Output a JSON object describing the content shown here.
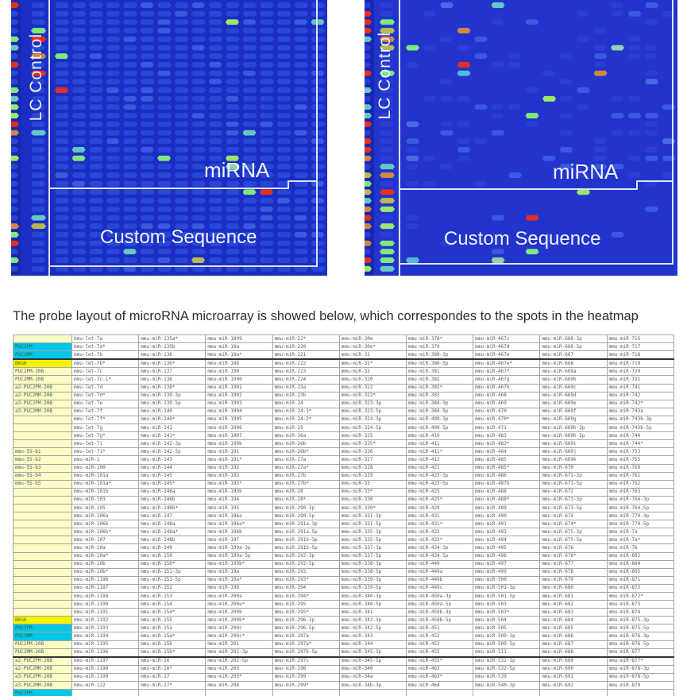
{
  "figure": {
    "lc_control_label": "LC Control",
    "mirna_label": "miRNA",
    "custom_sequence_label": "Custom Sequence",
    "left_panel_bg": "#1b2ec3",
    "right_panel_bg": "#2334cd",
    "dim_spot_color": "#2947d6",
    "dull_spot_color": "#2a3ed6",
    "light_spot_color": "#3a5ae0",
    "accent_colors": [
      "#7de87d",
      "#66c8c2",
      "#55b8d8",
      "#cc8844",
      "#b8b855",
      "#e33022",
      "#9ae86a",
      "#4a6ae4",
      "#8fd0b0"
    ],
    "strip_accent_colors": [
      "#e33022",
      "#cc8844",
      "#7de87d",
      "#66c8c2",
      "#b8b855",
      "#9ae86a"
    ],
    "line_color": "#d9e4f4"
  },
  "caption": {
    "text": "The probe layout of microRNA microarray is showed below, which correspondes to the spots in the heatmap above."
  },
  "table": {
    "cyan_labels": [
      "PUC2PM",
      "PUC2MM"
    ],
    "yellow_labels": [
      "BKG6"
    ],
    "thick_after_rows": [
      3,
      40
    ],
    "rows": [
      [
        "",
        "mmu-let-7a",
        "mmu-miR-135a*",
        "mmu-miR-1899",
        "mmu-miR-22*",
        "mmu-miR-30e",
        "mmu-miR-378*",
        "mmu-miR-467c",
        "mmu-miR-666-3p",
        "mmu-miR-715"
      ],
      [
        "PUC2PM",
        "mmu-let-7a*",
        "mmu-miR-135b",
        "mmu-miR-18a",
        "mmu-miR-220",
        "mmu-miR-30e*",
        "mmu-miR-379",
        "mmu-miR-467d",
        "mmu-miR-666-5p",
        "mmu-miR-717"
      ],
      [
        "PUC2MM",
        "mmu-let-7b",
        "mmu-miR-136",
        "mmu-miR-18a*",
        "mmu-miR-221",
        "mmu-miR-31",
        "mmu-miR-380-3p",
        "mmu-miR-467e",
        "mmu-miR-667",
        "mmu-miR-718"
      ],
      [
        "BKG6",
        "mmu-let-7b*",
        "mmu-miR-136*",
        "mmu-miR-18b",
        "mmu-miR-222",
        "mmu-miR-31*",
        "mmu-miR-380-5p",
        "mmu-miR-467e*",
        "mmu-miR-668",
        "mmu-miR-719"
      ],
      [
        "PUC2PM-20B",
        "mmu-let-7c",
        "mmu-miR-137",
        "mmu-miR-190",
        "mmu-miR-223",
        "mmu-miR-32",
        "mmu-miR-381",
        "mmu-miR-467f",
        "mmu-miR-669a",
        "mmu-miR-720"
      ],
      [
        "PUC2MM-20B",
        "mmu-let-7c-1*",
        "mmu-miR-138",
        "mmu-miR-1900",
        "mmu-miR-224",
        "mmu-miR-320",
        "mmu-miR-382",
        "mmu-miR-467g",
        "mmu-miR-669b",
        "mmu-miR-721"
      ],
      [
        "a2-PUC2PM-20B",
        "mmu-let-7d",
        "mmu-miR-138*",
        "mmu-miR-1901",
        "mmu-miR-23a",
        "mmu-miR-322",
        "mmu-miR-382*",
        "mmu-miR-467h",
        "mmu-miR-669c",
        "mmu-miR-741"
      ],
      [
        "a2-PUC2MM-20B",
        "mmu-let-7d*",
        "mmu-miR-139-3p",
        "mmu-miR-1902",
        "mmu-miR-23b",
        "mmu-miR-322*",
        "mmu-miR-383",
        "mmu-miR-468",
        "mmu-miR-669d",
        "mmu-miR-742"
      ],
      [
        "a3-PUC2PM-20B",
        "mmu-let-7e",
        "mmu-miR-139-5p",
        "mmu-miR-1903",
        "mmu-miR-24",
        "mmu-miR-323-3p",
        "mmu-miR-384-3p",
        "mmu-miR-469",
        "mmu-miR-669e",
        "mmu-miR-742*"
      ],
      [
        "a3-PUC2MM-20B",
        "mmu-let-7f",
        "mmu-miR-140",
        "mmu-miR-1904",
        "mmu-miR-24-1*",
        "mmu-miR-323-5p",
        "mmu-miR-384-5p",
        "mmu-miR-470",
        "mmu-miR-669f",
        "mmu-miR-743a"
      ],
      [
        "",
        "mmu-let-7f*",
        "mmu-miR-140*",
        "mmu-miR-1905",
        "mmu-miR-24-2*",
        "mmu-miR-324-3p",
        "mmu-miR-409-3p",
        "mmu-miR-470*",
        "mmu-miR-669g",
        "mmu-miR-743b-3p"
      ],
      [
        "",
        "mmu-let-7g",
        "mmu-miR-141",
        "mmu-miR-1906",
        "mmu-miR-25",
        "mmu-miR-324-5p",
        "mmu-miR-409-5p",
        "mmu-miR-471",
        "mmu-miR-669h-3p",
        "mmu-miR-743b-5p"
      ],
      [
        "",
        "mmu-let-7g*",
        "mmu-miR-141*",
        "mmu-miR-1907",
        "mmu-miR-26a",
        "mmu-miR-325",
        "mmu-miR-410",
        "mmu-miR-483",
        "mmu-miR-669h-5p",
        "mmu-miR-744"
      ],
      [
        "",
        "mmu-let-7i",
        "mmu-miR-142-3p",
        "mmu-miR-190b",
        "mmu-miR-26b",
        "mmu-miR-325*",
        "mmu-miR-411",
        "mmu-miR-483*",
        "mmu-miR-669i",
        "mmu-miR-744*"
      ],
      [
        "mmu-5S-b1",
        "mmu-let-7i*",
        "mmu-miR-142-5p",
        "mmu-miR-191",
        "mmu-miR-26b*",
        "mmu-miR-326",
        "mmu-miR-411*",
        "mmu-miR-484",
        "mmu-miR-669j",
        "mmu-miR-753"
      ],
      [
        "mmu-5S-b2",
        "mmu-miR-1",
        "mmu-miR-143",
        "mmu-miR-191*",
        "mmu-miR-27a",
        "mmu-miR-327",
        "mmu-miR-412",
        "mmu-miR-485",
        "mmu-miR-669k",
        "mmu-miR-755"
      ],
      [
        "mmu-5S-b3",
        "mmu-miR-100",
        "mmu-miR-144",
        "mmu-miR-192",
        "mmu-miR-27a*",
        "mmu-miR-328",
        "mmu-miR-421",
        "mmu-miR-485*",
        "mmu-miR-670",
        "mmu-miR-760"
      ],
      [
        "mmu-5S-b4",
        "mmu-miR-101a",
        "mmu-miR-145",
        "mmu-miR-193",
        "mmu-miR-27b",
        "mmu-miR-329",
        "mmu-miR-423-3p",
        "mmu-miR-486",
        "mmu-miR-671-3p",
        "mmu-miR-761"
      ],
      [
        "mmu-5S-b5",
        "mmu-miR-101a*",
        "mmu-miR-145*",
        "mmu-miR-193*",
        "mmu-miR-27b*",
        "mmu-miR-33",
        "mmu-miR-423-5p",
        "mmu-miR-487b",
        "mmu-miR-671-5p",
        "mmu-miR-762"
      ],
      [
        "",
        "mmu-miR-101b",
        "mmu-miR-146a",
        "mmu-miR-193b",
        "mmu-miR-28",
        "mmu-miR-33*",
        "mmu-miR-425",
        "mmu-miR-488",
        "mmu-miR-672",
        "mmu-miR-763"
      ],
      [
        "",
        "mmu-miR-103",
        "mmu-miR-146b",
        "mmu-miR-194",
        "mmu-miR-28*",
        "mmu-miR-330",
        "mmu-miR-425*",
        "mmu-miR-488*",
        "mmu-miR-673-3p",
        "mmu-miR-764-3p"
      ],
      [
        "",
        "mmu-miR-105",
        "mmu-miR-146b*",
        "mmu-miR-195",
        "mmu-miR-290-3p",
        "mmu-miR-330*",
        "mmu-miR-429",
        "mmu-miR-489",
        "mmu-miR-673-5p",
        "mmu-miR-764-5p"
      ],
      [
        "",
        "mmu-miR-106a",
        "mmu-miR-147",
        "mmu-miR-196a",
        "mmu-miR-290-5p",
        "mmu-miR-331-3p",
        "mmu-miR-431",
        "mmu-miR-490",
        "mmu-miR-674",
        "mmu-miR-770-3p"
      ],
      [
        "",
        "mmu-miR-106b",
        "mmu-miR-148a",
        "mmu-miR-196a*",
        "mmu-miR-291a-3p",
        "mmu-miR-331-5p",
        "mmu-miR-431*",
        "mmu-miR-491",
        "mmu-miR-674*",
        "mmu-miR-770-5p"
      ],
      [
        "",
        "mmu-miR-106b*",
        "mmu-miR-148a*",
        "mmu-miR-196b",
        "mmu-miR-291a-5p",
        "mmu-miR-335-3p",
        "mmu-miR-433",
        "mmu-miR-493",
        "mmu-miR-675-3p",
        "mmu-miR-7a"
      ],
      [
        "",
        "mmu-miR-107",
        "mmu-miR-148b",
        "mmu-miR-197",
        "mmu-miR-291b-3p",
        "mmu-miR-335-5p",
        "mmu-miR-433*",
        "mmu-miR-494",
        "mmu-miR-675-5p",
        "mmu-miR-7a*"
      ],
      [
        "",
        "mmu-miR-10a",
        "mmu-miR-149",
        "mmu-miR-199a-3p",
        "mmu-miR-291b-5p",
        "mmu-miR-337-3p",
        "mmu-miR-434-3p",
        "mmu-miR-495",
        "mmu-miR-676",
        "mmu-miR-7b"
      ],
      [
        "",
        "mmu-miR-10a*",
        "mmu-miR-150",
        "mmu-miR-199a-5p",
        "mmu-miR-292-3p",
        "mmu-miR-337-5p",
        "mmu-miR-434-5p",
        "mmu-miR-496",
        "mmu-miR-676*",
        "mmu-miR-802"
      ],
      [
        "",
        "mmu-miR-10b",
        "mmu-miR-150*",
        "mmu-miR-199b*",
        "mmu-miR-292-5p",
        "mmu-miR-338-3p",
        "mmu-miR-440",
        "mmu-miR-497",
        "mmu-miR-677",
        "mmu-miR-804"
      ],
      [
        "",
        "mmu-miR-10b*",
        "mmu-miR-151-3p",
        "mmu-miR-19a",
        "mmu-miR-293",
        "mmu-miR-338-5p",
        "mmu-miR-449a",
        "mmu-miR-499",
        "mmu-miR-678",
        "mmu-miR-805"
      ],
      [
        "",
        "mmu-miR-1186",
        "mmu-miR-151-5p",
        "mmu-miR-19a*",
        "mmu-miR-293*",
        "mmu-miR-339-3p",
        "mmu-miR-449b",
        "mmu-miR-500",
        "mmu-miR-679",
        "mmu-miR-871"
      ],
      [
        "",
        "mmu-miR-1187",
        "mmu-miR-152",
        "mmu-miR-19b",
        "mmu-miR-294",
        "mmu-miR-339-5p",
        "mmu-miR-449c",
        "mmu-miR-501-3p",
        "mmu-miR-680",
        "mmu-miR-872"
      ],
      [
        "",
        "mmu-miR-1188",
        "mmu-miR-153",
        "mmu-miR-200a",
        "mmu-miR-294*",
        "mmu-miR-340-3p",
        "mmu-miR-450a-3p",
        "mmu-miR-501-5p",
        "mmu-miR-681",
        "mmu-miR-872*"
      ],
      [
        "",
        "mmu-miR-1190",
        "mmu-miR-154",
        "mmu-miR-200a*",
        "mmu-miR-295",
        "mmu-miR-340-5p",
        "mmu-miR-450a-5p",
        "mmu-miR-503",
        "mmu-miR-682",
        "mmu-miR-873"
      ],
      [
        "",
        "mmu-miR-1191",
        "mmu-miR-154*",
        "mmu-miR-200b",
        "mmu-miR-295*",
        "mmu-miR-341",
        "mmu-miR-450b-3p",
        "mmu-miR-503*",
        "mmu-miR-683",
        "mmu-miR-874"
      ],
      [
        "BKG6",
        "mmu-miR-1192",
        "mmu-miR-155",
        "mmu-miR-200b*",
        "mmu-miR-296-3p",
        "mmu-miR-342-3p",
        "mmu-miR-450b-5p",
        "mmu-miR-504",
        "mmu-miR-684",
        "mmu-miR-875-3p"
      ],
      [
        "PUC2PM",
        "mmu-miR-1193",
        "mmu-miR-15a",
        "mmu-miR-200c",
        "mmu-miR-296-5p",
        "mmu-miR-342-5p",
        "mmu-miR-451",
        "mmu-miR-505",
        "mmu-miR-685",
        "mmu-miR-875-5p"
      ],
      [
        "PUC2MM",
        "mmu-miR-1194",
        "mmu-miR-15a*",
        "mmu-miR-200c*",
        "mmu-miR-297a",
        "mmu-miR-343",
        "mmu-miR-452",
        "mmu-miR-509-3p",
        "mmu-miR-686",
        "mmu-miR-876-3p"
      ],
      [
        "PUC2PM-20B",
        "mmu-miR-1195",
        "mmu-miR-15b",
        "mmu-miR-201",
        "mmu-miR-297a*",
        "mmu-miR-344",
        "mmu-miR-453",
        "mmu-miR-509-5p",
        "mmu-miR-687",
        "mmu-miR-876-5p"
      ],
      [
        "PUC2MM-20B",
        "mmu-miR-1196",
        "mmu-miR-15b*",
        "mmu-miR-202-3p",
        "mmu-miR-297b-5p",
        "mmu-miR-345-3p",
        "mmu-miR-455",
        "mmu-miR-511",
        "mmu-miR-688",
        "mmu-miR-877"
      ],
      [
        "a2-PUC2PM-20B",
        "mmu-miR-1197",
        "mmu-miR-16",
        "mmu-miR-202-5p",
        "mmu-miR-297c",
        "mmu-miR-345-5p",
        "mmu-miR-455*",
        "mmu-miR-532-3p",
        "mmu-miR-689",
        "mmu-miR-877*"
      ],
      [
        "a2-PUC2MM-20B",
        "mmu-miR-1198",
        "mmu-miR-16*",
        "mmu-miR-203",
        "mmu-miR-298",
        "mmu-miR-346",
        "mmu-miR-463",
        "mmu-miR-532-5p",
        "mmu-miR-690",
        "mmu-miR-878-3p"
      ],
      [
        "a3-PUC2PM-20B",
        "mmu-miR-1199",
        "mmu-miR-17",
        "mmu-miR-203*",
        "mmu-miR-299",
        "mmu-miR-34a",
        "mmu-miR-463*",
        "mmu-miR-539",
        "mmu-miR-691",
        "mmu-miR-878-5p"
      ],
      [
        "a3-PUC2MM-20B",
        "mmu-miR-122",
        "mmu-miR-17*",
        "mmu-miR-204",
        "mmu-miR-299*",
        "mmu-miR-34b-3p",
        "mmu-miR-464",
        "mmu-miR-540-3p",
        "mmu-miR-692",
        "mmu-miR-879"
      ],
      [
        "PUC2PM",
        "",
        "",
        "",
        "",
        "",
        "",
        "",
        "",
        ""
      ]
    ]
  }
}
